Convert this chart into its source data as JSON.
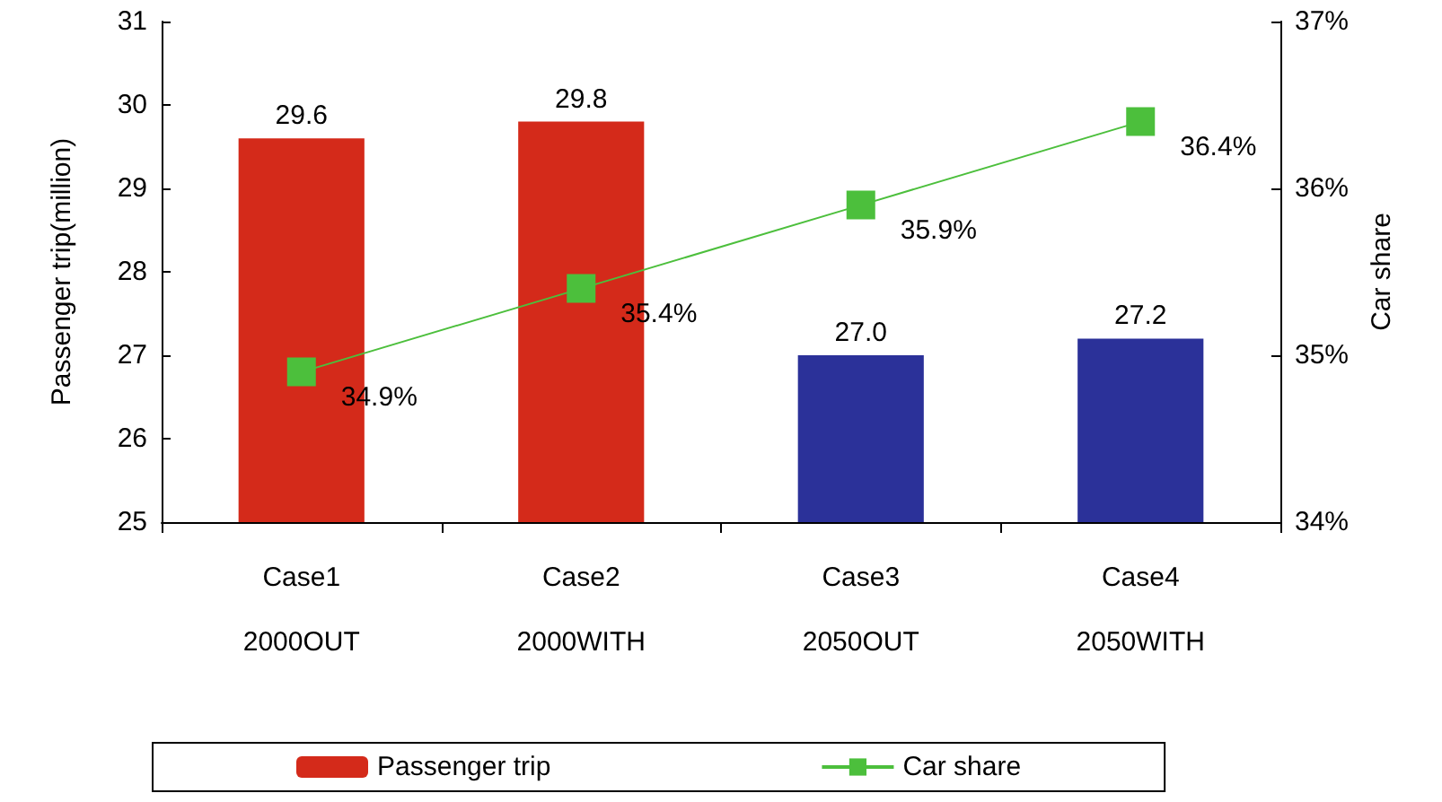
{
  "chart_data": {
    "type": "bar",
    "categories": [
      "Case1\n\n2000OUT",
      "Case2\n\n2000WITH",
      "Case3\n\n2050OUT",
      "Case4\n\n2050WITH"
    ],
    "ylabel": "Passenger trip(million)",
    "y2label": "Car share",
    "ylim": [
      25,
      31
    ],
    "yticks": [
      25,
      26,
      27,
      28,
      29,
      30,
      31
    ],
    "y2lim": [
      34,
      37
    ],
    "y2ticks": [
      {
        "value": 34,
        "label": "34%"
      },
      {
        "value": 35,
        "label": "35%"
      },
      {
        "value": 36,
        "label": "36%"
      },
      {
        "value": 37,
        "label": "37%"
      }
    ],
    "series": [
      {
        "name": "Passenger trip",
        "color": "#d42a1a",
        "colors": [
          "#d42a1a",
          "#d42a1a",
          "#2b3199",
          "#2b3199"
        ],
        "values": [
          29.6,
          29.8,
          27.0,
          27.2
        ],
        "value_labels": [
          "29.6",
          "29.8",
          "27.0",
          "27.2"
        ]
      },
      {
        "name": "Car share",
        "type": "line",
        "axis": "y2",
        "color": "#4cbf3c",
        "values": [
          34.9,
          35.4,
          35.9,
          36.4
        ],
        "value_labels": [
          "34.9%",
          "35.4%",
          "35.9%",
          "36.4%"
        ],
        "marker": "square"
      }
    ],
    "grid": false,
    "legend": "bottom"
  }
}
